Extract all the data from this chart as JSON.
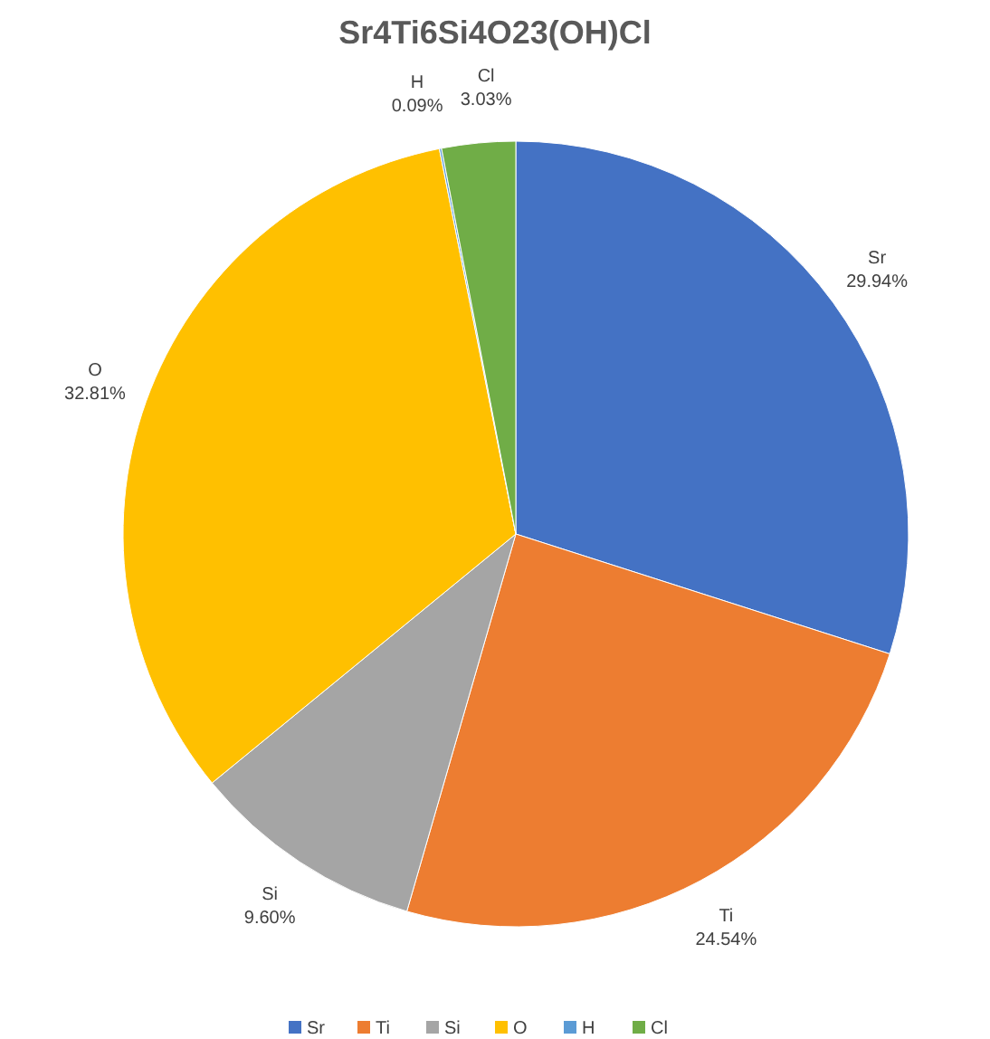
{
  "chart_data": {
    "type": "pie",
    "title": "Sr4Ti6Si4O23(OH)Cl",
    "categories": [
      "Sr",
      "Ti",
      "Si",
      "O",
      "H",
      "Cl"
    ],
    "values": [
      29.94,
      24.54,
      9.6,
      32.81,
      0.09,
      3.03
    ],
    "colors": [
      "#4472c4",
      "#ed7d31",
      "#a5a5a5",
      "#ffc000",
      "#5b9bd5",
      "#70ad47"
    ],
    "value_labels": [
      "29.94%",
      "24.54%",
      "9.60%",
      "32.81%",
      "0.09%",
      "3.03%"
    ],
    "legend": "bottom"
  }
}
